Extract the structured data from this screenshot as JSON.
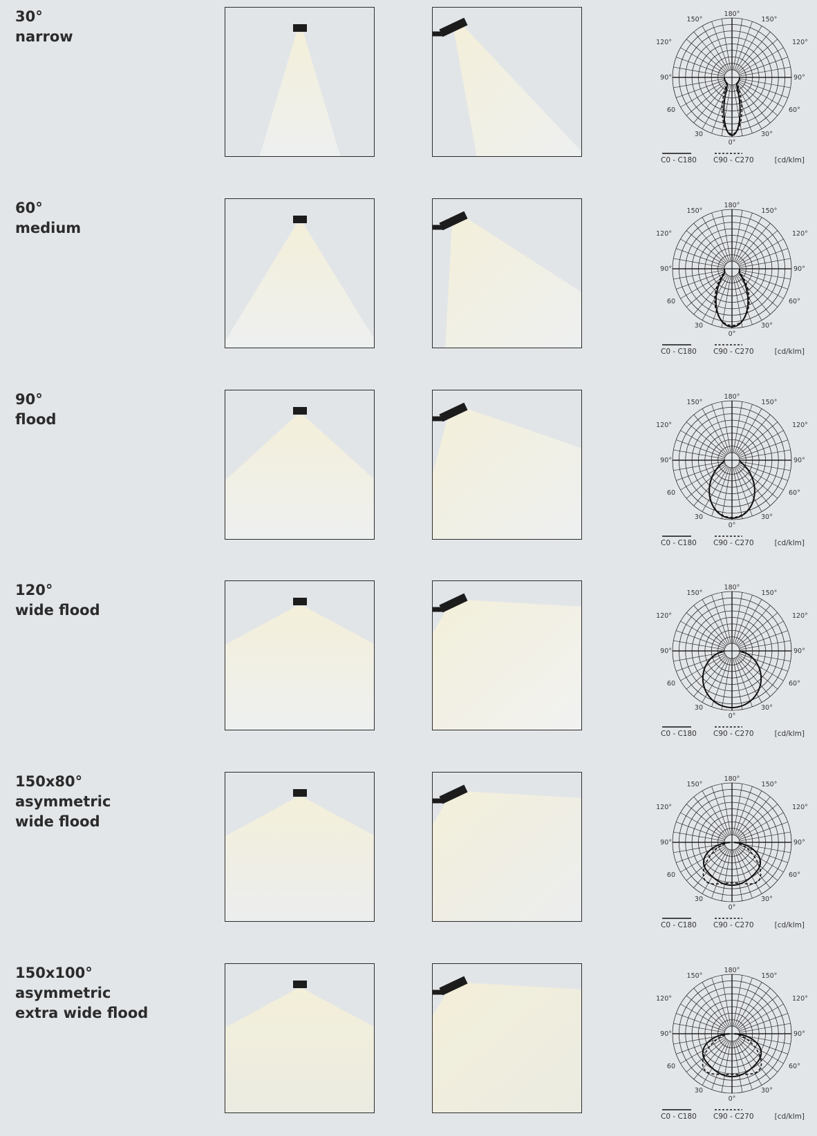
{
  "beams": [
    {
      "lines": [
        "30°",
        "narrow"
      ]
    },
    {
      "lines": [
        "60°",
        "medium"
      ]
    },
    {
      "lines": [
        "90°",
        "flood"
      ]
    },
    {
      "lines": [
        "120°",
        "wide flood"
      ]
    },
    {
      "lines": [
        "150x80°",
        "asymmetric",
        "wide flood"
      ]
    },
    {
      "lines": [
        "150x100°",
        "asymmetric",
        "extra wide flood"
      ]
    }
  ],
  "polar_labels": {
    "top": "180°",
    "upper": "150°",
    "mid_upper": "120°",
    "side": "90°",
    "lower": "60",
    "bottom_side": "30",
    "bottom_side_right": "30°",
    "lower_right": "60°",
    "bottom": "0°"
  },
  "legend": {
    "solid": "C0 - C180",
    "dashed": "C90 - C270",
    "unit": "[cd/klm]"
  },
  "colors": {
    "background": "#e3e6e9",
    "light_warm": "#f3efd9",
    "light_cool": "#eef0f1",
    "luminaire": "#1c1c1c"
  }
}
